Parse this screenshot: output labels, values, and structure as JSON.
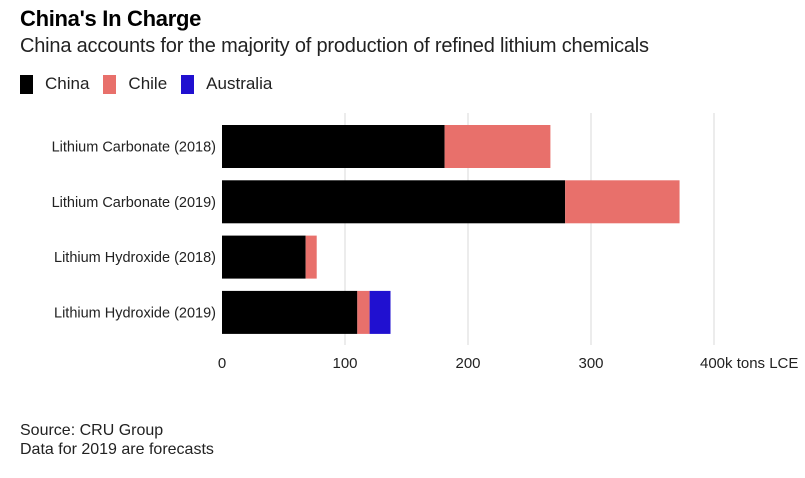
{
  "header": {
    "title": "China's In Charge",
    "subtitle": "China accounts for the majority of production of refined lithium chemicals"
  },
  "legend": [
    {
      "label": "China",
      "color": "#000000"
    },
    {
      "label": "Chile",
      "color": "#e8706b"
    },
    {
      "label": "Australia",
      "color": "#2010d0"
    }
  ],
  "footer": {
    "source": "Source: CRU Group",
    "note": "Data for 2019 are forecasts"
  },
  "chart_data": {
    "type": "bar",
    "orientation": "horizontal",
    "stacked": true,
    "title": "China's In Charge",
    "subtitle": "China accounts for the majority of production of refined lithium chemicals",
    "xlabel": "k tons LCE",
    "ylabel": "",
    "categories": [
      "Lithium Carbonate (2018)",
      "Lithium Carbonate (2019)",
      "Lithium Hydroxide (2018)",
      "Lithium Hydroxide (2019)"
    ],
    "series": [
      {
        "name": "China",
        "color": "#000000",
        "values": [
          181,
          279,
          68,
          110
        ]
      },
      {
        "name": "Chile",
        "color": "#e8706b",
        "values": [
          86,
          93,
          9,
          10
        ]
      },
      {
        "name": "Australia",
        "color": "#2010d0",
        "values": [
          0,
          0,
          0,
          17
        ]
      }
    ],
    "xlim": [
      0,
      400
    ],
    "xticks": [
      0,
      100,
      200,
      300,
      400
    ],
    "xtick_labels": [
      "0",
      "100",
      "200",
      "300",
      "400k tons LCE"
    ],
    "grid": true,
    "legend_position": "top-left"
  }
}
